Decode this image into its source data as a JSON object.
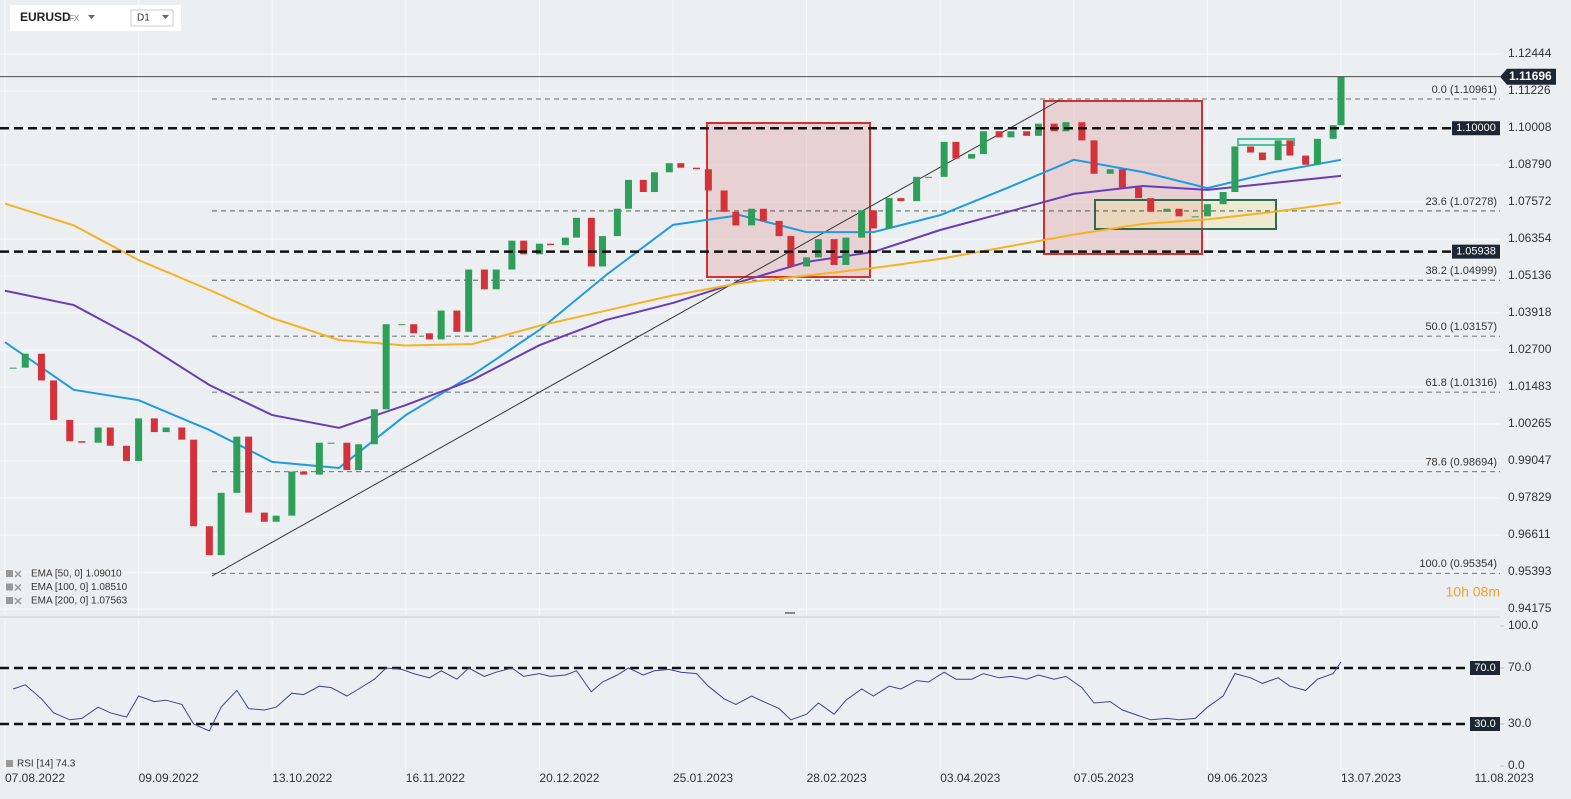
{
  "toolbar": {
    "symbol": "EURUSD",
    "market": "FX",
    "timeframe": "D1"
  },
  "countdown": "10h 08m",
  "chart_data": [
    {
      "type": "candlestick",
      "up_color": "#2e9e5b",
      "down_color": "#d4323a",
      "x": [
        "09.08.2022",
        "12.08.2022",
        "16.08.2022",
        "19.08.2022",
        "23.08.2022",
        "26.08.2022",
        "30.08.2022",
        "02.09.2022",
        "06.09.2022",
        "09.09.2022",
        "13.09.2022",
        "16.09.2022",
        "20.09.2022",
        "23.09.2022",
        "27.09.2022",
        "30.09.2022",
        "04.10.2022",
        "07.10.2022",
        "11.10.2022",
        "14.10.2022",
        "18.10.2022",
        "21.10.2022",
        "25.10.2022",
        "28.10.2022",
        "01.11.2022",
        "04.11.2022",
        "08.11.2022",
        "11.11.2022",
        "15.11.2022",
        "18.11.2022",
        "22.11.2022",
        "25.11.2022",
        "29.11.2022",
        "02.12.2022",
        "06.12.2022",
        "09.12.2022",
        "13.12.2022",
        "16.12.2022",
        "20.12.2022",
        "23.12.2022",
        "27.12.2022",
        "30.12.2022",
        "03.01.2023",
        "06.01.2023",
        "10.01.2023",
        "13.01.2023",
        "17.01.2023",
        "20.01.2023",
        "24.01.2023",
        "27.01.2023",
        "31.01.2023",
        "03.02.2023",
        "07.02.2023",
        "10.02.2023",
        "14.02.2023",
        "17.02.2023",
        "21.02.2023",
        "24.02.2023",
        "28.02.2023",
        "03.03.2023",
        "07.03.2023",
        "10.03.2023",
        "14.03.2023",
        "17.03.2023",
        "21.03.2023",
        "24.03.2023",
        "28.03.2023",
        "31.03.2023",
        "04.04.2023",
        "07.04.2023",
        "11.04.2023",
        "14.04.2023",
        "18.04.2023",
        "21.04.2023",
        "25.04.2023",
        "28.04.2023",
        "02.05.2023",
        "05.05.2023",
        "09.05.2023",
        "12.05.2023",
        "16.05.2023",
        "19.05.2023",
        "23.05.2023",
        "26.05.2023",
        "30.05.2023",
        "02.06.2023",
        "06.06.2023",
        "09.06.2023",
        "13.06.2023",
        "16.06.2023",
        "20.06.2023",
        "23.06.2023",
        "27.06.2023",
        "30.06.2023",
        "04.07.2023",
        "07.07.2023",
        "11.07.2023",
        "13.07.2023"
      ],
      "values": [
        1.0212,
        1.0258,
        1.017,
        1.004,
        0.997,
        0.9965,
        1.0015,
        0.9955,
        0.9905,
        1.0045,
        1.0,
        1.0015,
        0.9975,
        0.969,
        0.9595,
        0.98,
        0.9985,
        0.9735,
        0.9705,
        0.9725,
        0.987,
        0.986,
        0.9965,
        0.9965,
        0.9875,
        0.996,
        1.0075,
        1.0355,
        1.0355,
        1.0325,
        1.0305,
        1.04,
        1.033,
        1.0535,
        1.047,
        1.0535,
        1.063,
        1.0585,
        1.062,
        1.0615,
        1.064,
        1.0705,
        1.0545,
        1.0645,
        1.0735,
        1.083,
        1.079,
        1.0855,
        1.0885,
        1.087,
        1.0865,
        1.0795,
        1.0725,
        1.068,
        1.0735,
        1.0695,
        1.0645,
        1.0545,
        1.0575,
        1.0635,
        1.055,
        1.064,
        1.073,
        1.067,
        1.077,
        1.076,
        1.084,
        1.084,
        1.0955,
        1.09,
        1.0915,
        1.099,
        1.097,
        1.099,
        1.0975,
        1.1015,
        1.099,
        1.102,
        1.096,
        1.085,
        1.0865,
        1.0805,
        1.077,
        1.0725,
        1.0735,
        1.071,
        1.071,
        1.075,
        1.079,
        1.094,
        1.092,
        1.0895,
        1.096,
        1.091,
        1.088,
        1.0965,
        1.101,
        1.1169
      ],
      "ylim": [
        0.9398,
        1.1422
      ],
      "yticks": [
        1.12444,
        1.11226,
        1.10008,
        {
          "value": 1.0879,
          "label": "1.08790"
        },
        1.07572,
        1.06354,
        1.05136,
        1.03918,
        {
          "value": 1.027,
          "label": "1.02700"
        },
        1.01483,
        1.00265,
        0.99047,
        0.97829,
        0.96611,
        0.95393,
        0.94175
      ],
      "xticks": [
        "07.08.2022",
        "09.09.2022",
        "13.10.2022",
        "16.11.2022",
        "20.12.2022",
        "25.01.2023",
        "28.02.2023",
        "03.04.2023",
        "07.05.2023",
        "09.06.2023",
        "13.07.2023",
        "11.08.2023"
      ],
      "grid": true,
      "current_price": 1.11696,
      "levels": [
        {
          "value": 1.1,
          "label": "1.10000"
        },
        1.05938
      ],
      "fibonacci": [
        {
          "value": 1.10961,
          "label": "0.0 (1.10961)"
        },
        {
          "value": 1.07278,
          "label": "23.6 (1.07278)"
        },
        {
          "value": 1.04999,
          "label": "38.2 (1.04999)"
        },
        {
          "value": 1.03157,
          "label": "50.0 (1.03157)"
        },
        {
          "value": 1.01316,
          "label": "61.8 (1.01316)"
        },
        {
          "value": 0.98694,
          "label": "78.6 (0.98694)"
        },
        {
          "value": 0.95354,
          "label": "100.0 (0.95354)"
        }
      ],
      "overlay_x": [
        "07.08.2022",
        "24.08.2022",
        "09.09.2022",
        "27.09.2022",
        "13.10.2022",
        "30.10.2022",
        "16.11.2022",
        "03.12.2022",
        "20.12.2022",
        "07.01.2023",
        "25.01.2023",
        "11.02.2023",
        "28.02.2023",
        "17.03.2023",
        "03.04.2023",
        "20.04.2023",
        "07.05.2023",
        "24.05.2023",
        "09.06.2023",
        "26.06.2023",
        "13.07.2023"
      ],
      "overlays": [
        {
          "name": "EMA [50, 0] 1.09010",
          "color": "#1e9be3",
          "values": [
            1.0296,
            1.0139,
            1.0105,
            1.0007,
            0.9902,
            0.9882,
            1.0056,
            1.0188,
            1.0336,
            1.0517,
            1.0682,
            1.0714,
            1.0658,
            1.0658,
            1.0714,
            1.0803,
            1.0896,
            1.0856,
            1.0803,
            1.0856,
            1.0896
          ]
        },
        {
          "name": "EMA [100, 0] 1.08510",
          "color": "#6a3db8",
          "values": [
            1.0465,
            1.0418,
            1.0303,
            1.0155,
            1.0056,
            1.0014,
            1.0089,
            1.0172,
            1.0286,
            1.0369,
            1.0425,
            1.0494,
            1.056,
            1.0593,
            1.0665,
            1.0724,
            1.0784,
            1.081,
            1.0797,
            1.082,
            1.0843
          ]
        },
        {
          "name": "EMA [200, 0] 1.07563",
          "color": "#f5b324",
          "values": [
            1.0752,
            1.068,
            1.0566,
            1.0468,
            1.0375,
            1.0303,
            1.0285,
            1.029,
            1.035,
            1.04,
            1.045,
            1.049,
            1.0515,
            1.054,
            1.057,
            1.061,
            1.065,
            1.0685,
            1.07,
            1.0725,
            1.0755
          ]
        }
      ]
    },
    {
      "type": "line",
      "title": "RSI [14] 74.3",
      "color": "#3d4396",
      "x": [
        "09.08.2022",
        "12.08.2022",
        "16.08.2022",
        "19.08.2022",
        "23.08.2022",
        "26.08.2022",
        "30.08.2022",
        "02.09.2022",
        "06.09.2022",
        "09.09.2022",
        "13.09.2022",
        "16.09.2022",
        "20.09.2022",
        "23.09.2022",
        "27.09.2022",
        "30.09.2022",
        "04.10.2022",
        "07.10.2022",
        "11.10.2022",
        "14.10.2022",
        "18.10.2022",
        "21.10.2022",
        "25.10.2022",
        "28.10.2022",
        "01.11.2022",
        "04.11.2022",
        "08.11.2022",
        "11.11.2022",
        "15.11.2022",
        "18.11.2022",
        "22.11.2022",
        "25.11.2022",
        "29.11.2022",
        "02.12.2022",
        "06.12.2022",
        "09.12.2022",
        "13.12.2022",
        "16.12.2022",
        "20.12.2022",
        "23.12.2022",
        "27.12.2022",
        "30.12.2022",
        "03.01.2023",
        "06.01.2023",
        "10.01.2023",
        "13.01.2023",
        "17.01.2023",
        "20.01.2023",
        "24.01.2023",
        "27.01.2023",
        "31.01.2023",
        "03.02.2023",
        "07.02.2023",
        "10.02.2023",
        "14.02.2023",
        "17.02.2023",
        "21.02.2023",
        "24.02.2023",
        "28.02.2023",
        "03.03.2023",
        "07.03.2023",
        "10.03.2023",
        "14.03.2023",
        "17.03.2023",
        "21.03.2023",
        "24.03.2023",
        "28.03.2023",
        "31.03.2023",
        "04.04.2023",
        "07.04.2023",
        "11.04.2023",
        "14.04.2023",
        "18.04.2023",
        "21.04.2023",
        "25.04.2023",
        "28.04.2023",
        "02.05.2023",
        "05.05.2023",
        "09.05.2023",
        "12.05.2023",
        "16.05.2023",
        "19.05.2023",
        "23.05.2023",
        "26.05.2023",
        "30.05.2023",
        "02.06.2023",
        "06.06.2023",
        "09.06.2023",
        "13.06.2023",
        "16.06.2023",
        "20.06.2023",
        "23.06.2023",
        "27.06.2023",
        "30.06.2023",
        "04.07.2023",
        "07.07.2023",
        "11.07.2023",
        "13.07.2023"
      ],
      "values": [
        55,
        58,
        48,
        38,
        33,
        34,
        42,
        38,
        35,
        50,
        46,
        47,
        44,
        30,
        25,
        42,
        54,
        41,
        40,
        42,
        52,
        51,
        57,
        56,
        50,
        55,
        62,
        70,
        69,
        66,
        63,
        68,
        62,
        70,
        64,
        67,
        70,
        64,
        66,
        64,
        65,
        68,
        53,
        60,
        65,
        70,
        65,
        68,
        69,
        67,
        66,
        57,
        48,
        44,
        50,
        46,
        41,
        33,
        37,
        45,
        37,
        47,
        55,
        50,
        57,
        55,
        61,
        60,
        67,
        62,
        62,
        66,
        63,
        64,
        62,
        65,
        62,
        64,
        56,
        45,
        46,
        40,
        36,
        33,
        34,
        33,
        34,
        42,
        50,
        66,
        63,
        59,
        63,
        57,
        54,
        62,
        66,
        74.3
      ],
      "ylim": [
        0,
        100
      ],
      "yticks": [
        {
          "value": 100,
          "label": "100.0"
        },
        {
          "value": 70,
          "label": "70.0"
        },
        {
          "value": 30,
          "label": "30.0"
        },
        {
          "value": 0,
          "label": "0.0"
        }
      ],
      "levels": [
        {
          "value": 70,
          "label": "70.0"
        },
        {
          "value": 30,
          "label": "30.0"
        }
      ]
    }
  ]
}
